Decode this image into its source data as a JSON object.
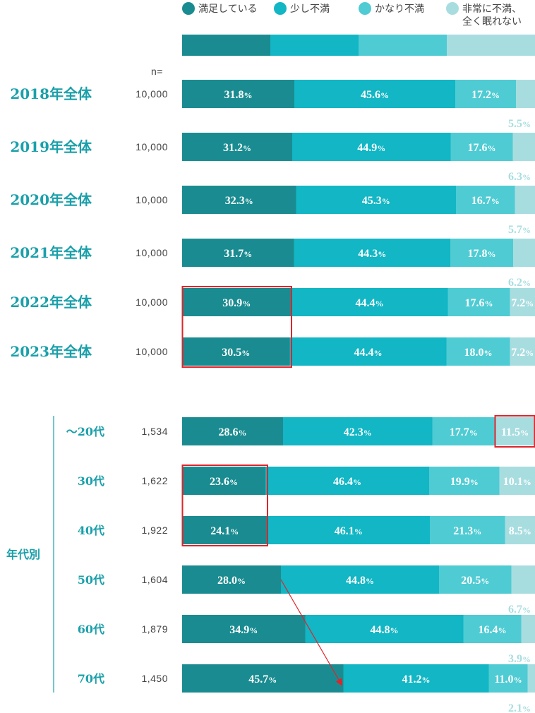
{
  "chart_data": {
    "type": "bar",
    "stacked": true,
    "orientation": "horizontal",
    "unit": "%",
    "legend": {
      "placement": "top",
      "items": [
        {
          "name": "満足している",
          "color": "#1a8c91"
        },
        {
          "name": "少し不満",
          "color": "#12b6c4"
        },
        {
          "name": "かなり不満",
          "color": "#4fcbd3"
        },
        {
          "name": "非常に不満、全く眠れない",
          "name_lines": [
            "非常に不満、",
            "全く眠れない"
          ],
          "color": "#a8dde0"
        }
      ]
    },
    "n_header": "n=",
    "group_label": "年代別",
    "rows": [
      {
        "label": "2018年全体",
        "n": "10,000",
        "values": [
          31.8,
          45.6,
          17.2,
          5.5
        ],
        "labels": [
          "31.8",
          "45.6",
          "17.2",
          "5.5"
        ],
        "group": "year"
      },
      {
        "label": "2019年全体",
        "n": "10,000",
        "values": [
          31.2,
          44.9,
          17.6,
          6.3
        ],
        "labels": [
          "31.2",
          "44.9",
          "17.6",
          "6.3"
        ],
        "group": "year"
      },
      {
        "label": "2020年全体",
        "n": "10,000",
        "values": [
          32.3,
          45.3,
          16.7,
          5.7
        ],
        "labels": [
          "32.3",
          "45.3",
          "16.7",
          "5.7"
        ],
        "group": "year"
      },
      {
        "label": "2021年全体",
        "n": "10,000",
        "values": [
          31.7,
          44.3,
          17.8,
          6.2
        ],
        "labels": [
          "31.7",
          "44.3",
          "17.8",
          "6.2"
        ],
        "group": "year"
      },
      {
        "label": "2022年全体",
        "n": "10,000",
        "values": [
          30.9,
          44.4,
          17.6,
          7.2
        ],
        "labels": [
          "30.9",
          "44.4",
          "17.6",
          "7.2"
        ],
        "group": "year"
      },
      {
        "label": "2023年全体",
        "n": "10,000",
        "values": [
          30.5,
          44.4,
          18.0,
          7.2
        ],
        "labels": [
          "30.5",
          "44.4",
          "18.0",
          "7.2"
        ],
        "group": "year"
      },
      {
        "label": "〜20代",
        "n": "1,534",
        "values": [
          28.6,
          42.3,
          17.7,
          11.5
        ],
        "labels": [
          "28.6",
          "42.3",
          "17.7",
          "11.5"
        ],
        "group": "age"
      },
      {
        "label": "30代",
        "n": "1,622",
        "values": [
          23.6,
          46.4,
          19.9,
          10.1
        ],
        "labels": [
          "23.6",
          "46.4",
          "19.9",
          "10.1"
        ],
        "group": "age"
      },
      {
        "label": "40代",
        "n": "1,922",
        "values": [
          24.1,
          46.1,
          21.3,
          8.5
        ],
        "labels": [
          "24.1",
          "46.1",
          "21.3",
          "8.5"
        ],
        "group": "age"
      },
      {
        "label": "50代",
        "n": "1,604",
        "values": [
          28.0,
          44.8,
          20.5,
          6.7
        ],
        "labels": [
          "28.0",
          "44.8",
          "20.5",
          "6.7"
        ],
        "group": "age"
      },
      {
        "label": "60代",
        "n": "1,879",
        "values": [
          34.9,
          44.8,
          16.4,
          3.9
        ],
        "labels": [
          "34.9",
          "44.8",
          "16.4",
          "3.9"
        ],
        "group": "age"
      },
      {
        "label": "70代",
        "n": "1,450",
        "values": [
          45.7,
          41.2,
          11.0,
          2.1
        ],
        "labels": [
          "45.7",
          "41.2",
          "11.0",
          "2.1"
        ],
        "group": "age"
      }
    ],
    "highlights": [
      {
        "rows": [
          "2022年全体",
          "2023年全体"
        ],
        "segment": "満足している"
      },
      {
        "rows": [
          "〜20代"
        ],
        "segment": "非常に不満、全く眠れない"
      },
      {
        "rows": [
          "30代",
          "40代"
        ],
        "segment": "満足している"
      }
    ],
    "arrow": {
      "from_row": "50代",
      "to_row": "70代",
      "series": "満足している"
    },
    "highlight_color": "#e0242a"
  }
}
